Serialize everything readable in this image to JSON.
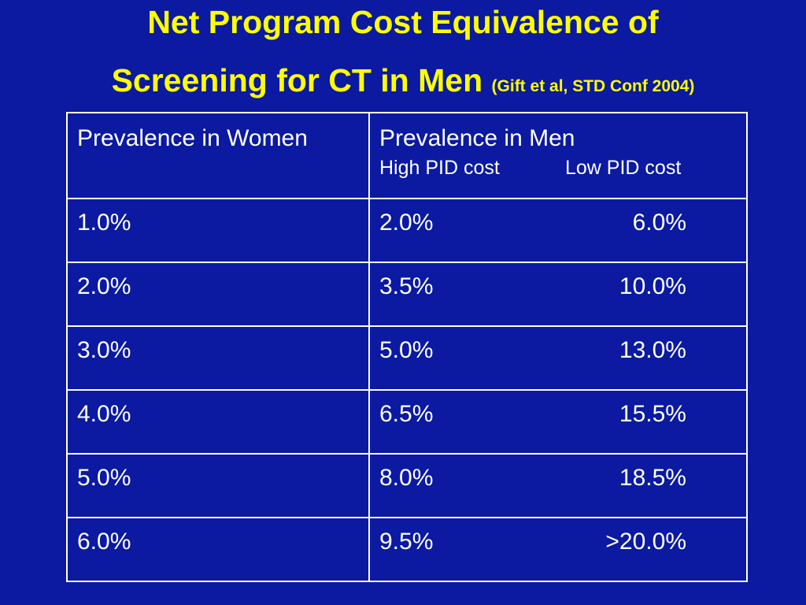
{
  "title": {
    "line1": "Net Program Cost Equivalence of",
    "line2": "Screening for CT in Men",
    "citation": "(Gift et al, STD Conf 2004)"
  },
  "table": {
    "header_col1": "Prevalence in Women",
    "header_col2": "Prevalence in Men",
    "sub_high": "High PID cost",
    "sub_low": "Low PID cost",
    "rows": [
      {
        "women": "1.0%",
        "high": "2.0%",
        "low": "6.0%"
      },
      {
        "women": "2.0%",
        "high": "3.5%",
        "low": "10.0%"
      },
      {
        "women": "3.0%",
        "high": "5.0%",
        "low": "13.0%"
      },
      {
        "women": "4.0%",
        "high": "6.5%",
        "low": "15.5%"
      },
      {
        "women": "5.0%",
        "high": "8.0%",
        "low": "18.5%"
      },
      {
        "women": "6.0%",
        "high": "9.5%",
        "low": ">20.0%"
      }
    ]
  },
  "colors": {
    "background": "#0b1aa0",
    "title": "#ffff00",
    "text": "#ffffff"
  }
}
